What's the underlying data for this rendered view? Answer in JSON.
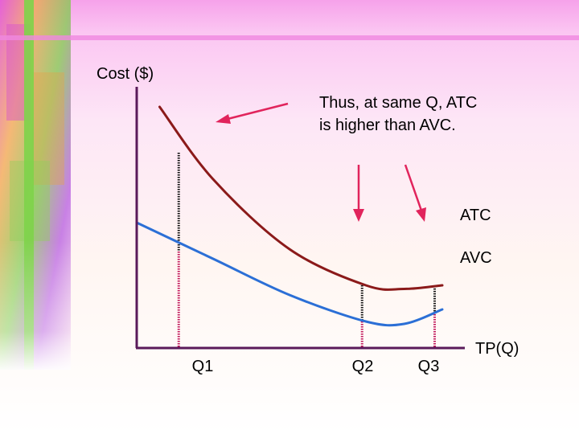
{
  "chart_data": {
    "type": "line",
    "title": "",
    "xlabel": "TP(Q)",
    "ylabel": "Cost ($)",
    "x_ticks": [
      "Q1",
      "Q2",
      "Q3"
    ],
    "series": [
      {
        "name": "ATC",
        "color": "#8b1a1a",
        "points": [
          [
            0.3,
            10.0
          ],
          [
            1.0,
            7.0
          ],
          [
            2.0,
            4.1
          ],
          [
            3.0,
            2.6
          ],
          [
            3.5,
            2.45
          ],
          [
            4.0,
            2.6
          ]
        ]
      },
      {
        "name": "AVC",
        "color": "#2b6fd6",
        "points": [
          [
            0.0,
            5.2
          ],
          [
            1.0,
            3.7
          ],
          [
            2.0,
            2.2
          ],
          [
            3.0,
            1.1
          ],
          [
            3.5,
            1.0
          ],
          [
            4.0,
            1.6
          ]
        ]
      }
    ],
    "guides": [
      {
        "tick": "Q1",
        "x": 0.55,
        "y_top": 8.1,
        "y_split": 4.0
      },
      {
        "tick": "Q2",
        "x": 2.95,
        "y_top": 2.6,
        "y_split": 1.1
      },
      {
        "tick": "Q3",
        "x": 3.9,
        "y_top": 2.57,
        "y_split": 1.5
      }
    ],
    "annotation": {
      "line1": "Thus, at same Q, ATC",
      "line2": "is higher than AVC."
    },
    "grid": false,
    "legend": "none"
  }
}
